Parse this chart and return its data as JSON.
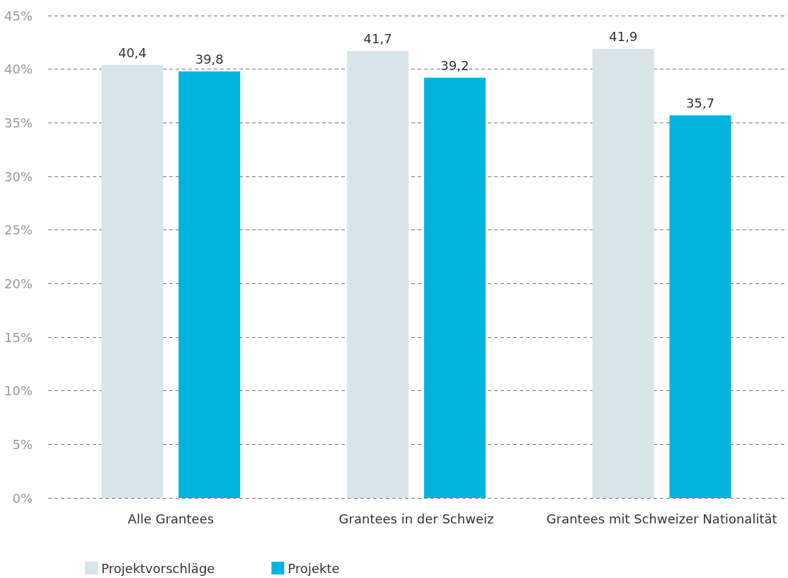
{
  "chart_data": {
    "type": "bar",
    "categories": [
      "Alle Grantees",
      "Grantees in der Schweiz",
      "Grantees mit Schweizer Nationalität"
    ],
    "series": [
      {
        "name": "Projektvorschläge",
        "color": "#d9e4e9",
        "values": [
          40.4,
          41.7,
          41.9
        ],
        "value_labels": [
          "40,4",
          "41,7",
          "41,9"
        ]
      },
      {
        "name": "Projekte",
        "color": "#00b4de",
        "values": [
          39.8,
          39.2,
          35.7
        ],
        "value_labels": [
          "39,8",
          "39,2",
          "35,7"
        ]
      }
    ],
    "ylim": [
      0,
      45
    ],
    "yticks": [
      {
        "value": 0,
        "label": "0%"
      },
      {
        "value": 5,
        "label": "5%"
      },
      {
        "value": 10,
        "label": "10%"
      },
      {
        "value": 15,
        "label": "15%"
      },
      {
        "value": 20,
        "label": "20%"
      },
      {
        "value": 25,
        "label": "25%"
      },
      {
        "value": 30,
        "label": "30%"
      },
      {
        "value": 35,
        "label": "35%"
      },
      {
        "value": 40,
        "label": "40%"
      },
      {
        "value": 45,
        "label": "45%"
      }
    ],
    "grid": "y",
    "legend": "bottom left"
  }
}
